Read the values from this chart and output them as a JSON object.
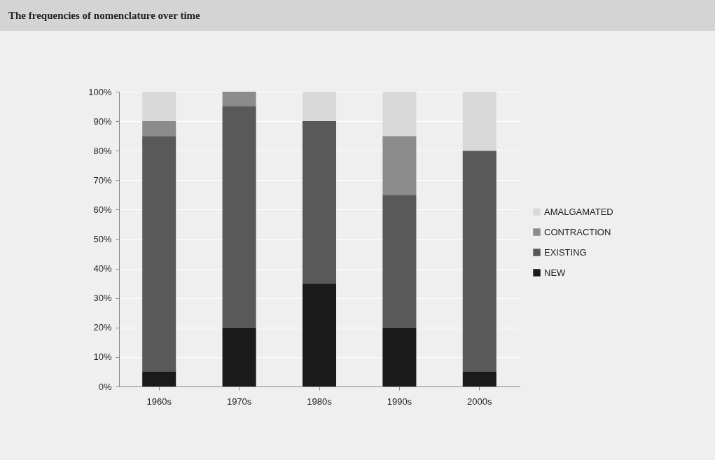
{
  "chart_data": {
    "type": "bar",
    "title": "The frequencies of nomenclature over time",
    "categories": [
      "1960s",
      "1970s",
      "1980s",
      "1990s",
      "2000s"
    ],
    "series": [
      {
        "name": "NEW",
        "color": "#1a1a1a",
        "values": [
          5,
          20,
          35,
          20,
          5
        ]
      },
      {
        "name": "EXISTING",
        "color": "#595959",
        "values": [
          80,
          75,
          55,
          45,
          75
        ]
      },
      {
        "name": "CONTRACTION",
        "color": "#8c8c8c",
        "values": [
          5,
          5,
          0,
          20,
          0
        ]
      },
      {
        "name": "AMALGAMATED",
        "color": "#d9d9d9",
        "values": [
          10,
          0,
          10,
          15,
          20
        ]
      }
    ],
    "stacked": true,
    "ylim": [
      0,
      100
    ],
    "yticks": [
      {
        "value": 0,
        "label": "0%"
      },
      {
        "value": 10,
        "label": "10%"
      },
      {
        "value": 20,
        "label": "20%"
      },
      {
        "value": 30,
        "label": "30%"
      },
      {
        "value": 40,
        "label": "40%"
      },
      {
        "value": 50,
        "label": "50%"
      },
      {
        "value": 60,
        "label": "60%"
      },
      {
        "value": 70,
        "label": "70%"
      },
      {
        "value": 80,
        "label": "80%"
      },
      {
        "value": 90,
        "label": "90%"
      },
      {
        "value": 100,
        "label": "100%"
      }
    ],
    "grid": "y",
    "legend": "right"
  }
}
